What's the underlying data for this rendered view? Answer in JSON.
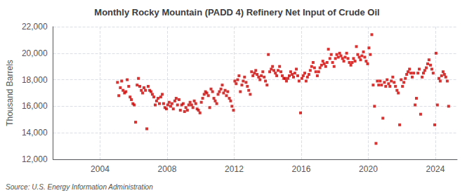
{
  "chart_data": {
    "type": "scatter",
    "title": "Monthly Rocky Mountain (PADD 4) Refinery Net Input of Crude Oil",
    "ylabel": "Thousand Barrels",
    "annotations": [
      "Source: U.S. Energy Information Administration"
    ],
    "color": "#cc0000",
    "marker": "square",
    "grid": true,
    "xlim": [
      2001.2,
      2025.3
    ],
    "xticks": [
      2004,
      2008,
      2012,
      2016,
      2020,
      2024
    ],
    "ylim": [
      12000,
      22000
    ],
    "yticks": [
      {
        "value": 12000,
        "label": "12,000"
      },
      {
        "value": 14000,
        "label": "14,000"
      },
      {
        "value": 16000,
        "label": "16,000"
      },
      {
        "value": 18000,
        "label": "18,000"
      },
      {
        "value": 20000,
        "label": "20,000"
      },
      {
        "value": 22000,
        "label": "22,000"
      }
    ],
    "x": [
      2005.04,
      2005.12,
      2005.21,
      2005.29,
      2005.37,
      2005.46,
      2005.54,
      2005.62,
      2005.71,
      2005.79,
      2005.87,
      2005.96,
      2006.04,
      2006.12,
      2006.21,
      2006.29,
      2006.37,
      2006.46,
      2006.54,
      2006.62,
      2006.71,
      2006.79,
      2006.87,
      2006.96,
      2007.04,
      2007.12,
      2007.21,
      2007.29,
      2007.37,
      2007.46,
      2007.54,
      2007.62,
      2007.71,
      2007.79,
      2007.87,
      2007.96,
      2008.04,
      2008.12,
      2008.21,
      2008.29,
      2008.37,
      2008.46,
      2008.54,
      2008.62,
      2008.71,
      2008.79,
      2008.87,
      2008.96,
      2009.04,
      2009.12,
      2009.21,
      2009.29,
      2009.37,
      2009.46,
      2009.54,
      2009.62,
      2009.71,
      2009.79,
      2009.87,
      2009.96,
      2010.04,
      2010.12,
      2010.21,
      2010.29,
      2010.37,
      2010.46,
      2010.54,
      2010.62,
      2010.71,
      2010.79,
      2010.87,
      2010.96,
      2011.04,
      2011.12,
      2011.21,
      2011.29,
      2011.37,
      2011.46,
      2011.54,
      2011.62,
      2011.71,
      2011.79,
      2011.87,
      2011.96,
      2012.04,
      2012.12,
      2012.21,
      2012.29,
      2012.37,
      2012.46,
      2012.54,
      2012.62,
      2012.71,
      2012.79,
      2012.87,
      2012.96,
      2013.04,
      2013.12,
      2013.21,
      2013.29,
      2013.37,
      2013.46,
      2013.54,
      2013.62,
      2013.71,
      2013.79,
      2013.87,
      2013.96,
      2014.04,
      2014.12,
      2014.21,
      2014.29,
      2014.37,
      2014.46,
      2014.54,
      2014.62,
      2014.71,
      2014.79,
      2014.87,
      2014.96,
      2015.04,
      2015.12,
      2015.21,
      2015.29,
      2015.37,
      2015.46,
      2015.54,
      2015.62,
      2015.71,
      2015.79,
      2015.87,
      2015.96,
      2016.04,
      2016.12,
      2016.21,
      2016.29,
      2016.37,
      2016.46,
      2016.54,
      2016.62,
      2016.71,
      2016.79,
      2016.87,
      2016.96,
      2017.04,
      2017.12,
      2017.21,
      2017.29,
      2017.37,
      2017.46,
      2017.54,
      2017.62,
      2017.71,
      2017.79,
      2017.87,
      2017.96,
      2018.04,
      2018.12,
      2018.21,
      2018.29,
      2018.37,
      2018.46,
      2018.54,
      2018.62,
      2018.71,
      2018.79,
      2018.87,
      2018.96,
      2019.04,
      2019.12,
      2019.21,
      2019.29,
      2019.37,
      2019.46,
      2019.54,
      2019.62,
      2019.71,
      2019.79,
      2019.87,
      2019.96,
      2020.04,
      2020.12,
      2020.21,
      2020.29,
      2020.37,
      2020.46,
      2020.54,
      2020.62,
      2020.71,
      2020.79,
      2020.87,
      2020.96,
      2021.04,
      2021.12,
      2021.21,
      2021.29,
      2021.37,
      2021.46,
      2021.54,
      2021.62,
      2021.71,
      2021.79,
      2021.87,
      2021.96,
      2022.04,
      2022.12,
      2022.21,
      2022.29,
      2022.37,
      2022.46,
      2022.54,
      2022.62,
      2022.71,
      2022.79,
      2022.87,
      2022.96,
      2023.04,
      2023.12,
      2023.21,
      2023.29,
      2023.37,
      2023.46,
      2023.54,
      2023.62,
      2023.71,
      2023.79,
      2023.87,
      2023.96,
      2024.04,
      2024.12,
      2024.21,
      2024.29,
      2024.37,
      2024.46,
      2024.54,
      2024.62,
      2024.71,
      2024.79
    ],
    "values": [
      17800,
      16800,
      17400,
      17900,
      17200,
      17000,
      17100,
      18000,
      17500,
      16700,
      16500,
      16200,
      16100,
      14800,
      17600,
      18100,
      17500,
      17200,
      17000,
      17400,
      17200,
      14300,
      17500,
      17200,
      17100,
      16900,
      16700,
      16100,
      16400,
      16600,
      16200,
      16700,
      16900,
      16200,
      15900,
      15800,
      16100,
      16300,
      16000,
      16200,
      15800,
      16400,
      16600,
      16100,
      16500,
      15700,
      16100,
      16200,
      15600,
      15900,
      15700,
      16100,
      16300,
      16100,
      15900,
      16400,
      16200,
      15800,
      15700,
      15500,
      16300,
      16600,
      16900,
      17100,
      17000,
      16800,
      15900,
      17300,
      17100,
      16600,
      16400,
      16200,
      16900,
      17100,
      17300,
      17600,
      17000,
      17200,
      16800,
      17100,
      16600,
      16400,
      16000,
      15700,
      17900,
      17700,
      18000,
      18300,
      17100,
      17600,
      17900,
      18200,
      17800,
      17500,
      17200,
      16900,
      18600,
      18300,
      18500,
      18700,
      18400,
      18200,
      18000,
      18300,
      18600,
      18200,
      17900,
      17600,
      19900,
      18600,
      18800,
      19000,
      18700,
      18500,
      18300,
      18700,
      19000,
      18600,
      18300,
      18100,
      18100,
      17900,
      18100,
      18300,
      18600,
      18400,
      18200,
      18500,
      18800,
      18300,
      17900,
      15500,
      18100,
      18300,
      18500,
      17900,
      18200,
      18400,
      18700,
      19000,
      19300,
      18900,
      18600,
      18300,
      18600,
      18900,
      19100,
      19400,
      19200,
      19000,
      19300,
      20300,
      19600,
      19900,
      19300,
      19000,
      19600,
      19900,
      19700,
      20000,
      19800,
      19600,
      19400,
      19700,
      20000,
      19600,
      19300,
      19100,
      19300,
      19600,
      19400,
      20500,
      19900,
      19700,
      19500,
      19800,
      20100,
      19700,
      19400,
      19200,
      20400,
      19900,
      21400,
      17600,
      16000,
      13200,
      17900,
      17600,
      17900,
      17600,
      15100,
      17800,
      17500,
      18000,
      17700,
      17500,
      17900,
      18200,
      17800,
      17500,
      17200,
      17000,
      14600,
      18000,
      17500,
      17800,
      18100,
      18400,
      18600,
      18800,
      18500,
      18200,
      18500,
      16100,
      16600,
      18500,
      18800,
      15400,
      18200,
      18500,
      18700,
      18900,
      19200,
      19500,
      19100,
      18800,
      18500,
      14600,
      20000,
      16100,
      18100,
      17900,
      18300,
      18600,
      18400,
      18200,
      17900,
      16000
    ]
  }
}
